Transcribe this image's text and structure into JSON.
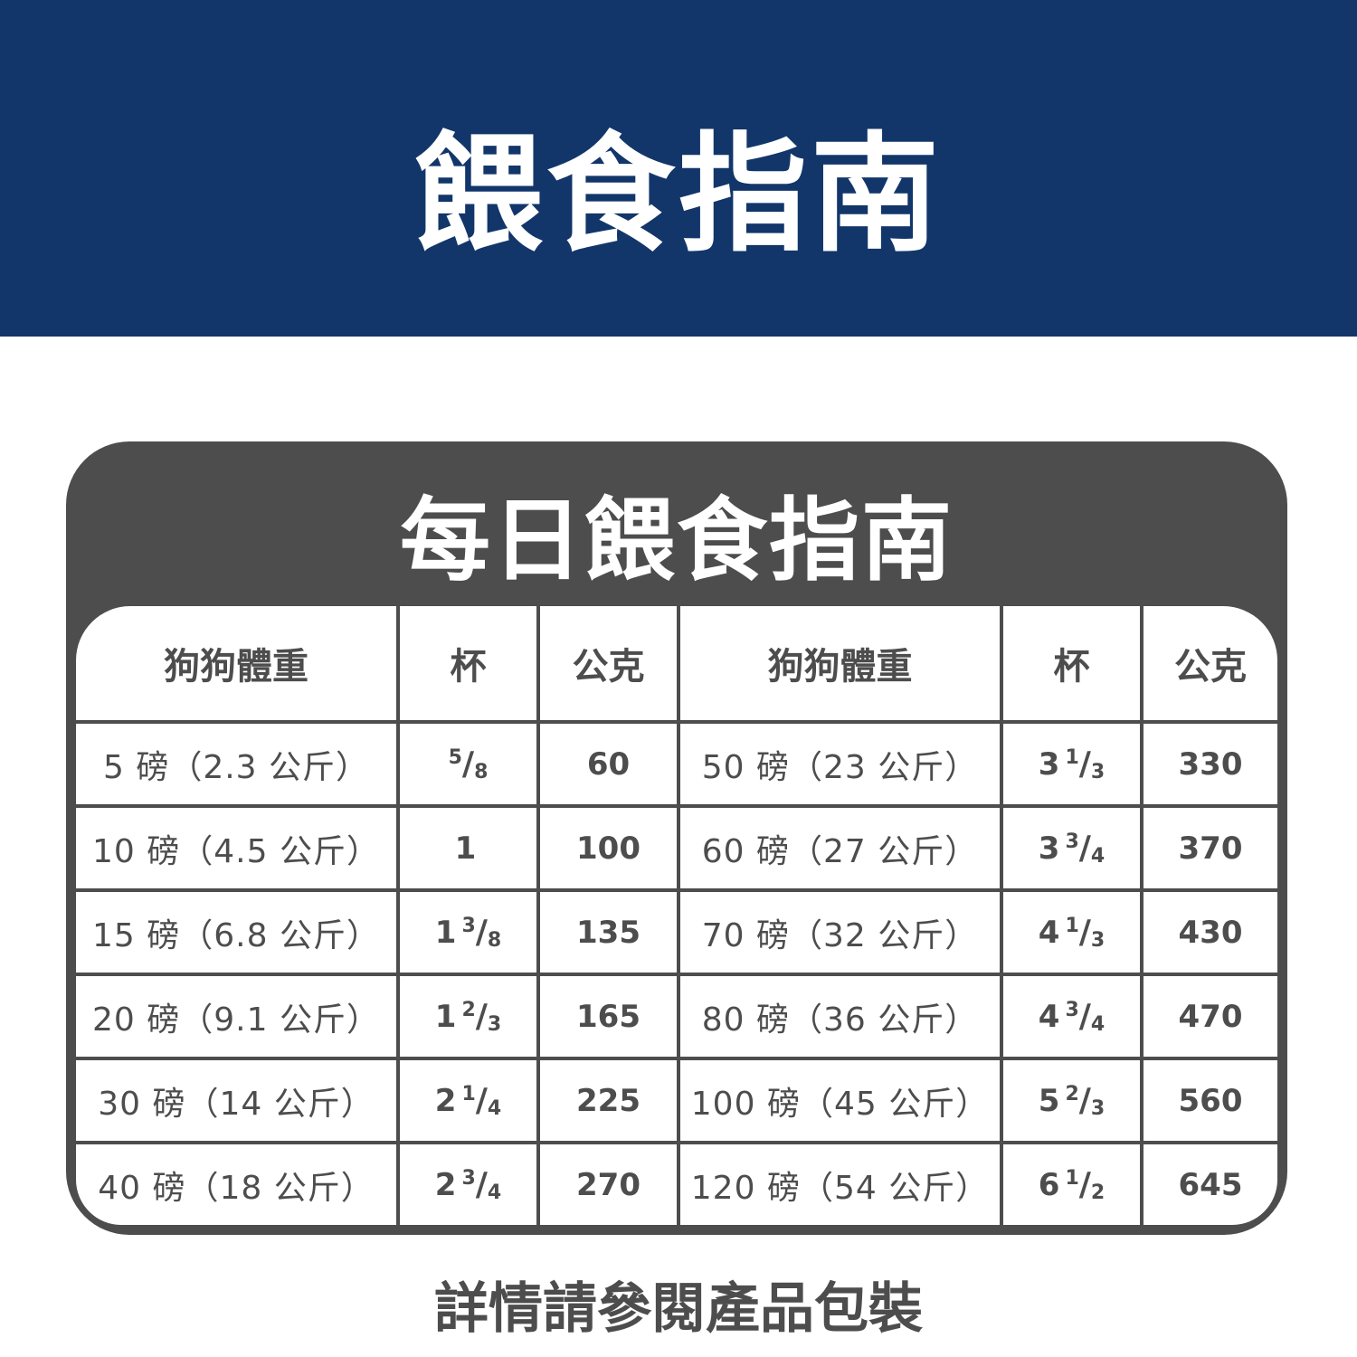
{
  "banner_title": "餵食指南",
  "card_title": "每日餵食指南",
  "headers": [
    "狗狗體重",
    "杯",
    "公克",
    "狗狗體重",
    "杯",
    "公克"
  ],
  "rows": [
    {
      "left": {
        "weight": "5 磅（2.3 公斤）",
        "cup": {
          "whole": "",
          "num": "5",
          "den": "8"
        },
        "grams": "60"
      },
      "right": {
        "weight": "50 磅（23 公斤）",
        "cup": {
          "whole": "3",
          "num": "1",
          "den": "3"
        },
        "grams": "330"
      }
    },
    {
      "left": {
        "weight": "10 磅（4.5 公斤）",
        "cup": {
          "whole": "1",
          "num": "",
          "den": ""
        },
        "grams": "100"
      },
      "right": {
        "weight": "60 磅（27 公斤）",
        "cup": {
          "whole": "3",
          "num": "3",
          "den": "4"
        },
        "grams": "370"
      }
    },
    {
      "left": {
        "weight": "15 磅（6.8 公斤）",
        "cup": {
          "whole": "1",
          "num": "3",
          "den": "8"
        },
        "grams": "135"
      },
      "right": {
        "weight": "70 磅（32 公斤）",
        "cup": {
          "whole": "4",
          "num": "1",
          "den": "3"
        },
        "grams": "430"
      }
    },
    {
      "left": {
        "weight": "20 磅（9.1 公斤）",
        "cup": {
          "whole": "1",
          "num": "2",
          "den": "3"
        },
        "grams": "165"
      },
      "right": {
        "weight": "80 磅（36 公斤）",
        "cup": {
          "whole": "4",
          "num": "3",
          "den": "4"
        },
        "grams": "470"
      }
    },
    {
      "left": {
        "weight": "30 磅（14 公斤）",
        "cup": {
          "whole": "2",
          "num": "1",
          "den": "4"
        },
        "grams": "225"
      },
      "right": {
        "weight": "100 磅（45 公斤）",
        "cup": {
          "whole": "5",
          "num": "2",
          "den": "3"
        },
        "grams": "560"
      }
    },
    {
      "left": {
        "weight": "40 磅（18 公斤）",
        "cup": {
          "whole": "2",
          "num": "3",
          "den": "4"
        },
        "grams": "270"
      },
      "right": {
        "weight": "120 磅（54 公斤）",
        "cup": {
          "whole": "6",
          "num": "1",
          "den": "2"
        },
        "grams": "645"
      }
    }
  ],
  "footer_note": "詳情請參閱產品包裝",
  "colors": {
    "banner": "#12366a",
    "card": "#4d4d4d",
    "text": "#4d4d4d"
  }
}
